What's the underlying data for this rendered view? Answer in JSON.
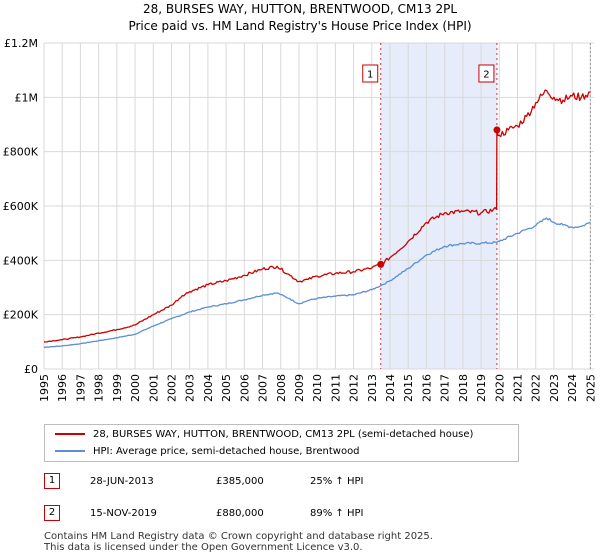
{
  "title_line1": "28, BURSES WAY, HUTTON, BRENTWOOD, CM13 2PL",
  "title_line2": "Price paid vs. HM Land Registry's House Price Index (HPI)",
  "colors": {
    "property": "#cc0000",
    "hpi": "#5b8fd6",
    "shade": "#e6ecfa",
    "grid": "#d9d9d9"
  },
  "legend": {
    "property_label": "28, BURSES WAY, HUTTON, BRENTWOOD, CM13 2PL (semi-detached house)",
    "hpi_label": "HPI: Average price, semi-detached house, Brentwood"
  },
  "transactions": [
    {
      "num": "1",
      "date": "28-JUN-2013",
      "price": "£385,000",
      "hpi_change": "25% ↑ HPI"
    },
    {
      "num": "2",
      "date": "15-NOV-2019",
      "price": "£880,000",
      "hpi_change": "89% ↑ HPI"
    }
  ],
  "footer": {
    "line1": "Contains HM Land Registry data © Crown copyright and database right 2025.",
    "line2": "This data is licensed under the Open Government Licence v3.0."
  },
  "chart_data": {
    "type": "line",
    "title": "28, BURSES WAY, HUTTON, BRENTWOOD, CM13 2PL",
    "subtitle": "Price paid vs. HM Land Registry's House Price Index (HPI)",
    "xlabel": "",
    "ylabel": "",
    "xlim": [
      1995,
      2025.2
    ],
    "ylim": [
      0,
      1200000
    ],
    "x_ticks": [
      1995,
      1996,
      1997,
      1998,
      1999,
      2000,
      2001,
      2002,
      2003,
      2004,
      2005,
      2006,
      2007,
      2008,
      2009,
      2010,
      2011,
      2012,
      2013,
      2014,
      2015,
      2016,
      2017,
      2018,
      2019,
      2020,
      2021,
      2022,
      2023,
      2024,
      2025
    ],
    "y_ticks": [
      {
        "value": 0,
        "label": "£0"
      },
      {
        "value": 200000,
        "label": "£200K"
      },
      {
        "value": 400000,
        "label": "£400K"
      },
      {
        "value": 600000,
        "label": "£600K"
      },
      {
        "value": 800000,
        "label": "£800K"
      },
      {
        "value": 1000000,
        "label": "£1M"
      },
      {
        "value": 1200000,
        "label": "£1.2M"
      }
    ],
    "grid": true,
    "shaded_range": [
      2013.49,
      2019.87
    ],
    "series": [
      {
        "name": "28, BURSES WAY, HUTTON, BRENTWOOD, CM13 2PL (semi-detached house)",
        "x": [
          1995,
          1996,
          1997,
          1998,
          1999,
          2000,
          2001,
          2002,
          2002.6,
          2003,
          2004,
          2005,
          2006,
          2007,
          2007.8,
          2008.5,
          2009,
          2009.5,
          2010,
          2011,
          2012,
          2013,
          2013.49,
          2014,
          2015,
          2016,
          2017,
          2018,
          2019,
          2019.85,
          2019.87,
          2020,
          2020.5,
          2021,
          2021.5,
          2022,
          2022.6,
          2023,
          2023.5,
          2024,
          2024.5,
          2025
        ],
        "values": [
          100000,
          108000,
          118000,
          132000,
          145000,
          162000,
          200000,
          235000,
          270000,
          285000,
          310000,
          325000,
          345000,
          368000,
          378000,
          345000,
          322000,
          330000,
          342000,
          352000,
          358000,
          372000,
          385000,
          410000,
          470000,
          540000,
          575000,
          580000,
          575000,
          588000,
          880000,
          860000,
          880000,
          895000,
          930000,
          980000,
          1025000,
          1000000,
          990000,
          1005000,
          1000000,
          1020000
        ]
      },
      {
        "name": "HPI: Average price, semi-detached house, Brentwood",
        "x": [
          1995,
          1996,
          1997,
          1998,
          1999,
          2000,
          2001,
          2002,
          2003,
          2004,
          2005,
          2006,
          2007,
          2007.8,
          2008.5,
          2009,
          2009.5,
          2010,
          2011,
          2012,
          2013,
          2013.49,
          2014,
          2015,
          2016,
          2017,
          2018,
          2019,
          2019.87,
          2020,
          2021,
          2022,
          2022.6,
          2023,
          2023.5,
          2024,
          2024.5,
          2025
        ],
        "values": [
          80000,
          85000,
          93000,
          104000,
          115000,
          128000,
          158000,
          185000,
          210000,
          228000,
          240000,
          255000,
          272000,
          280000,
          258000,
          240000,
          252000,
          260000,
          268000,
          273000,
          292000,
          307000,
          325000,
          370000,
          420000,
          452000,
          462000,
          463000,
          466000,
          470000,
          500000,
          528000,
          556000,
          540000,
          530000,
          522000,
          525000,
          540000
        ]
      }
    ],
    "markers": [
      {
        "label": "1",
        "x": 2013.49,
        "y": 385000
      },
      {
        "label": "2",
        "x": 2019.87,
        "y": 880000
      }
    ]
  }
}
